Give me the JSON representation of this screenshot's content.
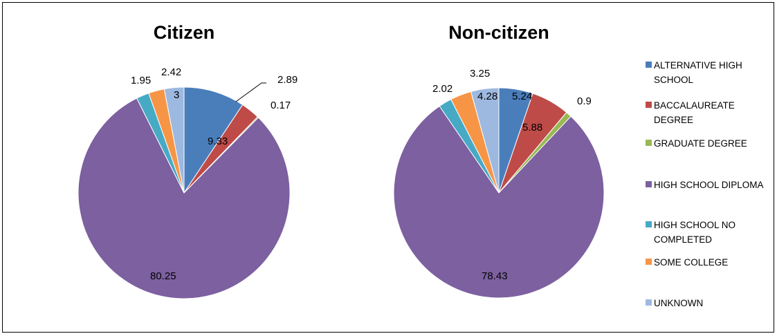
{
  "chart_data": [
    {
      "type": "pie",
      "title": "Citizen",
      "categories": [
        "ALTERNATIVE HIGH SCHOOL",
        "BACCALAUREATE DEGREE",
        "GRADUATE DEGREE",
        "HIGH SCHOOL DIPLOMA",
        "HIGH SCHOOL NO COMPLETED",
        "SOME COLLEGE",
        "UNKNOWN"
      ],
      "values": [
        9.33,
        2.89,
        0.17,
        80.25,
        1.95,
        2.42,
        3
      ],
      "value_labels": [
        "9.33",
        "2.89",
        "0.17",
        "80.25",
        "1.95",
        "2.42",
        "3"
      ]
    },
    {
      "type": "pie",
      "title": "Non-citizen",
      "categories": [
        "ALTERNATIVE HIGH SCHOOL",
        "BACCALAUREATE DEGREE",
        "GRADUATE DEGREE",
        "HIGH SCHOOL DIPLOMA",
        "HIGH SCHOOL NO COMPLETED",
        "SOME COLLEGE",
        "UNKNOWN"
      ],
      "values": [
        5.24,
        5.88,
        0.9,
        78.43,
        2.02,
        3.25,
        4.28
      ],
      "value_labels": [
        "5.24",
        "5.88",
        "0.9",
        "78.43",
        "2.02",
        "3.25",
        "4.28"
      ]
    }
  ],
  "legend": {
    "placement": "right",
    "items": [
      {
        "lines": [
          "ALTERNATIVE HIGH",
          "SCHOOL"
        ],
        "color": "#4a7ebb"
      },
      {
        "lines": [
          "BACCALAUREATE",
          "DEGREE"
        ],
        "color": "#be4b48"
      },
      {
        "lines": [
          "GRADUATE DEGREE"
        ],
        "color": "#98b954"
      },
      {
        "lines": [
          "HIGH SCHOOL DIPLOMA"
        ],
        "color": "#7d60a0"
      },
      {
        "lines": [
          "HIGH SCHOOL NO",
          "COMPLETED"
        ],
        "color": "#46aac5"
      },
      {
        "lines": [
          "SOME COLLEGE"
        ],
        "color": "#f69546"
      },
      {
        "lines": [
          "UNKNOWN"
        ],
        "color": "#9db9e0"
      }
    ]
  },
  "colors": [
    "#4a7ebb",
    "#be4b48",
    "#98b954",
    "#7d60a0",
    "#46aac5",
    "#f69546",
    "#9db9e0"
  ]
}
